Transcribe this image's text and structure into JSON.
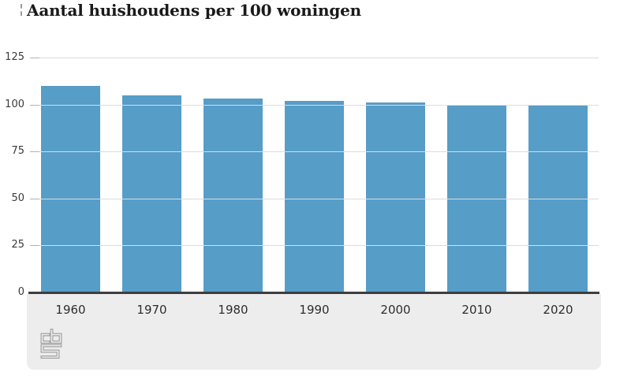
{
  "chart_data": {
    "type": "bar",
    "title": "Aantal huishoudens per 100 woningen",
    "categories": [
      "1960",
      "1970",
      "1980",
      "1990",
      "2000",
      "2010",
      "2020"
    ],
    "values": [
      110,
      105,
      103,
      102,
      101,
      100,
      100
    ],
    "xlabel": "",
    "ylabel": "",
    "ylim": [
      0,
      125
    ],
    "yticks": [
      0,
      25,
      50,
      75,
      100,
      125
    ],
    "grid": true,
    "legend_position": "none",
    "bar_color": "#569dc8",
    "axis_line_color": "#3e3e3e",
    "gridline_color": "#dcdcdc",
    "tick_color": "#b2b2b2",
    "footer_background": "#ededed",
    "logo": "cbs-logo",
    "logo_color": "#a2a2a2"
  }
}
